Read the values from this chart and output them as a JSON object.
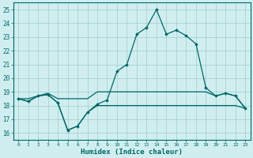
{
  "title": "",
  "xlabel": "Humidex (Indice chaleur)",
  "background_color": "#d0eef0",
  "grid_color": "#a0cccc",
  "line_color": "#006666",
  "ylim": [
    15.5,
    25.5
  ],
  "xlim": [
    -0.5,
    23.5
  ],
  "yticks": [
    16,
    17,
    18,
    19,
    20,
    21,
    22,
    23,
    24,
    25
  ],
  "xticks": [
    0,
    1,
    2,
    3,
    4,
    5,
    6,
    7,
    8,
    9,
    10,
    11,
    12,
    13,
    14,
    15,
    16,
    17,
    18,
    19,
    20,
    21,
    22,
    23
  ],
  "series": [
    {
      "x": [
        0,
        1,
        2,
        3,
        4,
        5,
        6,
        7,
        8,
        9,
        10,
        11,
        12,
        13,
        14,
        15,
        16,
        17,
        18,
        19,
        20,
        21,
        22,
        23
      ],
      "y": [
        18.5,
        18.3,
        18.7,
        18.8,
        18.2,
        16.2,
        16.5,
        17.5,
        18.1,
        18.4,
        20.5,
        21.0,
        23.2,
        23.7,
        25.0,
        23.2,
        23.5,
        23.1,
        22.5,
        19.3,
        18.7,
        18.9,
        18.7,
        17.8
      ],
      "marker": "D",
      "markersize": 1.8,
      "linewidth": 0.9
    },
    {
      "x": [
        0,
        1,
        2,
        3,
        4,
        5,
        6,
        7,
        8,
        9,
        10,
        11,
        12,
        13,
        14,
        15,
        16,
        17,
        18,
        19,
        20,
        21,
        22,
        23
      ],
      "y": [
        18.5,
        18.5,
        18.7,
        18.9,
        18.5,
        18.5,
        18.5,
        18.5,
        19.0,
        19.0,
        19.0,
        19.0,
        19.0,
        19.0,
        19.0,
        19.0,
        19.0,
        19.0,
        19.0,
        19.0,
        18.7,
        18.9,
        18.7,
        17.8
      ],
      "marker": null,
      "markersize": 0,
      "linewidth": 0.9
    },
    {
      "x": [
        0,
        1,
        2,
        3,
        4,
        5,
        6,
        7,
        8,
        9,
        10,
        11,
        12,
        13,
        14,
        15,
        16,
        17,
        18,
        19,
        20,
        21,
        22,
        23
      ],
      "y": [
        18.5,
        18.3,
        18.7,
        18.8,
        18.2,
        16.2,
        16.5,
        17.5,
        18.0,
        18.0,
        18.0,
        18.0,
        18.0,
        18.0,
        18.0,
        18.0,
        18.0,
        18.0,
        18.0,
        18.0,
        18.0,
        18.0,
        18.0,
        17.8
      ],
      "marker": null,
      "markersize": 0,
      "linewidth": 0.9
    }
  ]
}
